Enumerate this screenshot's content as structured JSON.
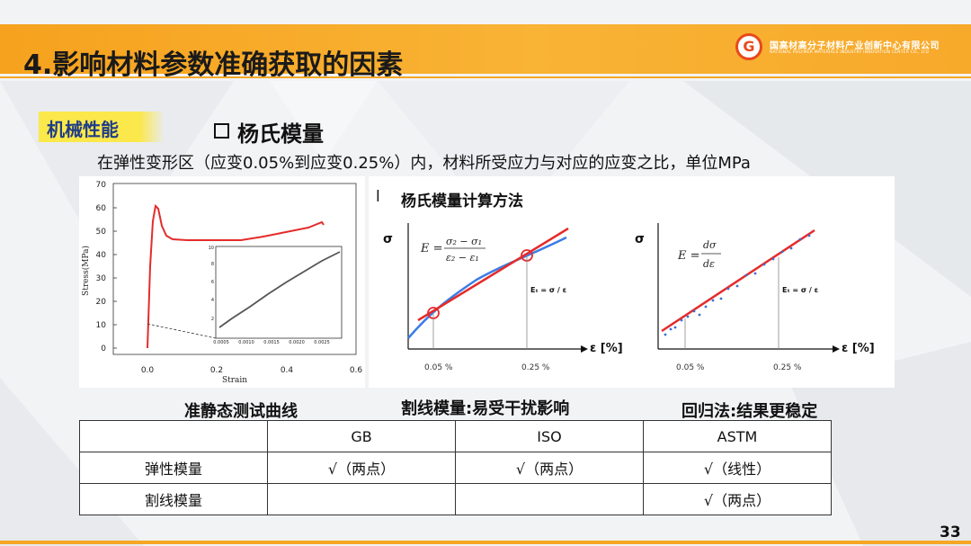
{
  "header": {
    "title": "4.影响材料参数准确获取的因素",
    "logo_mark": "G",
    "logo_cn": "国高材高分子材料产业创新中心有限公司",
    "logo_en": "NATIONAL POLYMER MATERIALS INDUSTRY INNOVATION CENTER CO., LTD"
  },
  "tag": "机械性能",
  "subtitle": "杨氏模量",
  "description": "在弹性变形区（应变0.05%到应变0.25%）内，材料所受应力与对应的应变之比，单位MPa",
  "left_figure": {
    "ylabel": "Stress(MPa)",
    "xlabel": "Strain",
    "yticks": [
      "0",
      "10",
      "20",
      "30",
      "40",
      "50",
      "60",
      "70"
    ],
    "xticks": [
      "0.0",
      "0.2",
      "0.4",
      "0.6"
    ],
    "inset_yticks": [
      "2",
      "4",
      "6",
      "8",
      "10"
    ],
    "inset_xticks": [
      "0.0005",
      "0.0010",
      "0.0015",
      "0.0020",
      "0.0025"
    ]
  },
  "right_figure": {
    "bullet": "l",
    "title": "杨氏模量计算方法",
    "sigma": "σ",
    "eps_axis": "ε [%]",
    "tick_005": "0.05 %",
    "tick_025": "0.25 %",
    "relation": "Eₜ = σ / ε"
  },
  "captions": {
    "left": "准静态测试曲线",
    "middle": "割线模量:易受干扰影响",
    "right": "回归法:结果更稳定"
  },
  "table": {
    "headers": [
      "",
      "GB",
      "ISO",
      "ASTM"
    ],
    "rows": [
      [
        "弹性模量",
        "√（两点）",
        "√（两点）",
        "√（线性）"
      ],
      [
        "割线模量",
        "",
        "",
        "√（两点）"
      ]
    ]
  },
  "page_number": "33",
  "colors": {
    "accent": "#f5a623",
    "tag_bg": "#fbe84a",
    "tag_text": "#1f3c88",
    "curve": "#e52b2b",
    "blue_curve": "#3b7de6"
  }
}
